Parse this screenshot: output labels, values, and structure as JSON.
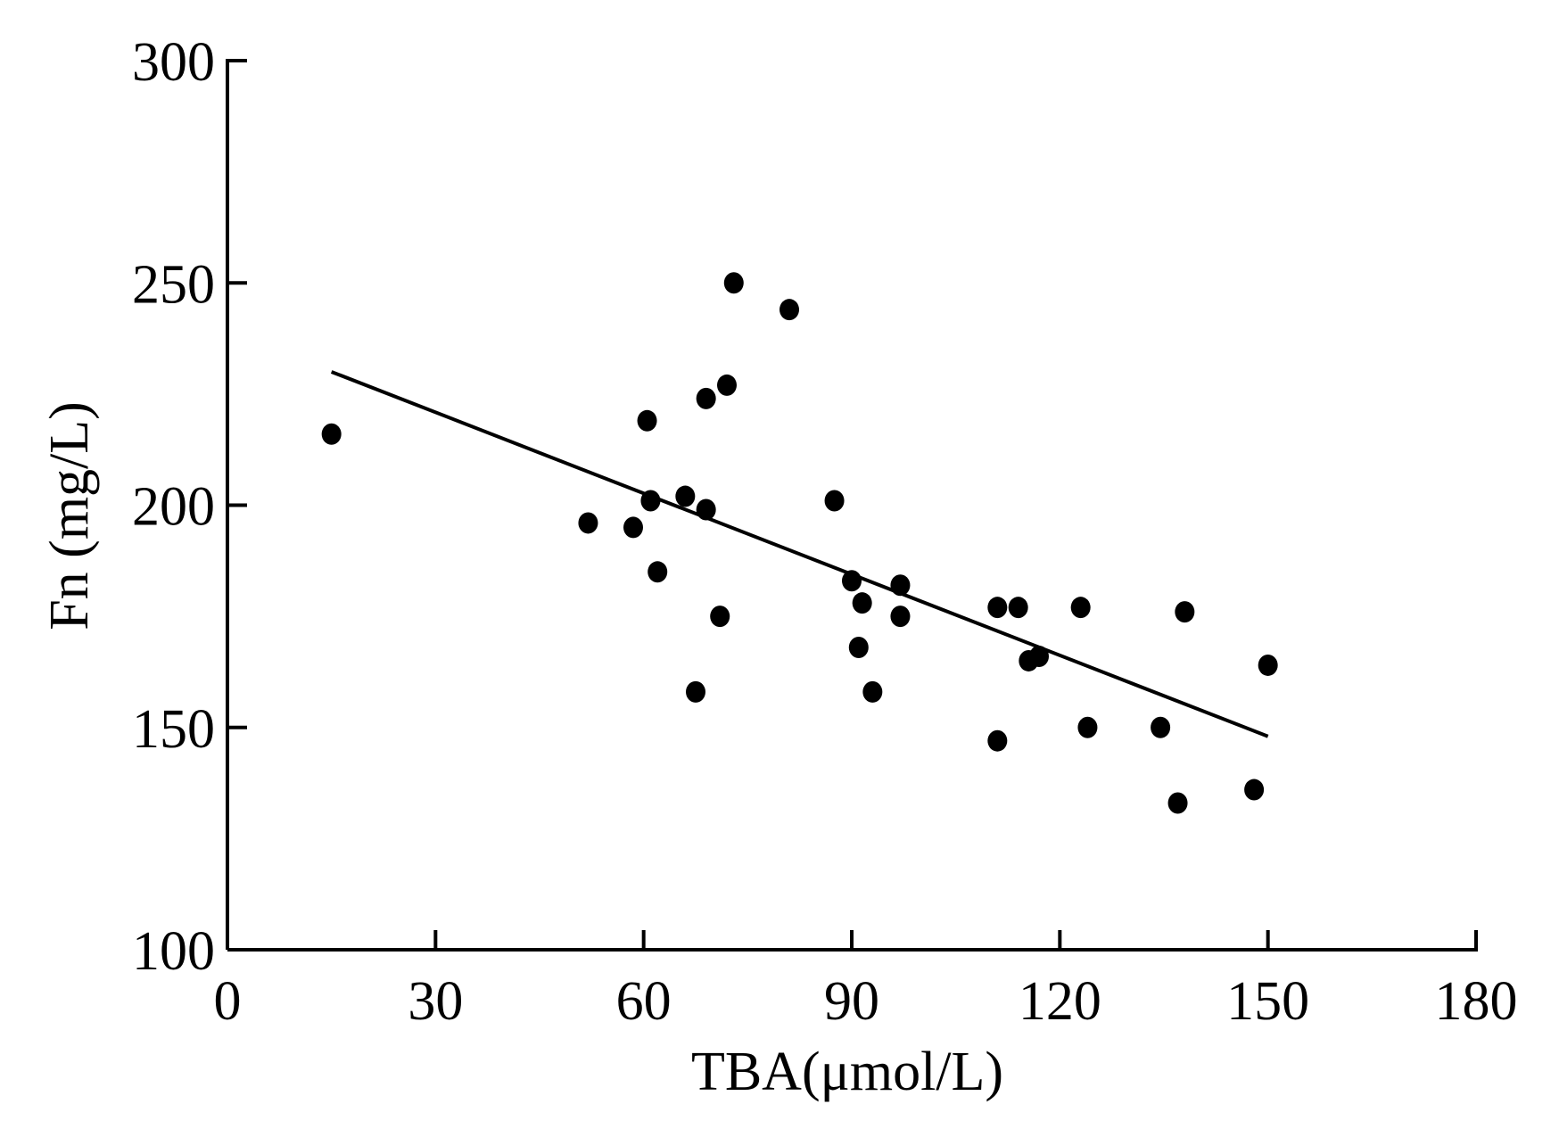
{
  "chart_data": {
    "type": "scatter",
    "title": "",
    "xlabel": "TBA(μmol/L)",
    "ylabel": "Fn (mg/L)",
    "xlim": [
      0,
      180
    ],
    "ylim": [
      100,
      300
    ],
    "x_ticks": [
      0,
      30,
      60,
      90,
      120,
      150,
      180
    ],
    "y_ticks": [
      100,
      150,
      200,
      250,
      300
    ],
    "grid": false,
    "legend": "none",
    "series": [
      {
        "points": [
          {
            "x": 15,
            "y": 216
          },
          {
            "x": 52,
            "y": 196
          },
          {
            "x": 58.5,
            "y": 195
          },
          {
            "x": 60.5,
            "y": 219
          },
          {
            "x": 61,
            "y": 201
          },
          {
            "x": 62,
            "y": 185
          },
          {
            "x": 66,
            "y": 202
          },
          {
            "x": 67.5,
            "y": 158
          },
          {
            "x": 69,
            "y": 224
          },
          {
            "x": 69,
            "y": 199
          },
          {
            "x": 71,
            "y": 175
          },
          {
            "x": 72,
            "y": 227
          },
          {
            "x": 73,
            "y": 250
          },
          {
            "x": 81,
            "y": 244
          },
          {
            "x": 87.5,
            "y": 201
          },
          {
            "x": 90,
            "y": 183
          },
          {
            "x": 91,
            "y": 168
          },
          {
            "x": 91.5,
            "y": 178
          },
          {
            "x": 93,
            "y": 158
          },
          {
            "x": 97,
            "y": 182
          },
          {
            "x": 97,
            "y": 175
          },
          {
            "x": 111,
            "y": 147
          },
          {
            "x": 111,
            "y": 177
          },
          {
            "x": 114,
            "y": 177
          },
          {
            "x": 115.5,
            "y": 165
          },
          {
            "x": 117,
            "y": 166
          },
          {
            "x": 123,
            "y": 177
          },
          {
            "x": 124,
            "y": 150
          },
          {
            "x": 134.5,
            "y": 150
          },
          {
            "x": 137,
            "y": 133
          },
          {
            "x": 138,
            "y": 176
          },
          {
            "x": 148,
            "y": 136
          },
          {
            "x": 150,
            "y": 164
          }
        ]
      }
    ],
    "trendline": {
      "x": [
        15,
        150
      ],
      "y": [
        230,
        148
      ]
    },
    "point_color": "#000000",
    "line_color": "#000000"
  }
}
